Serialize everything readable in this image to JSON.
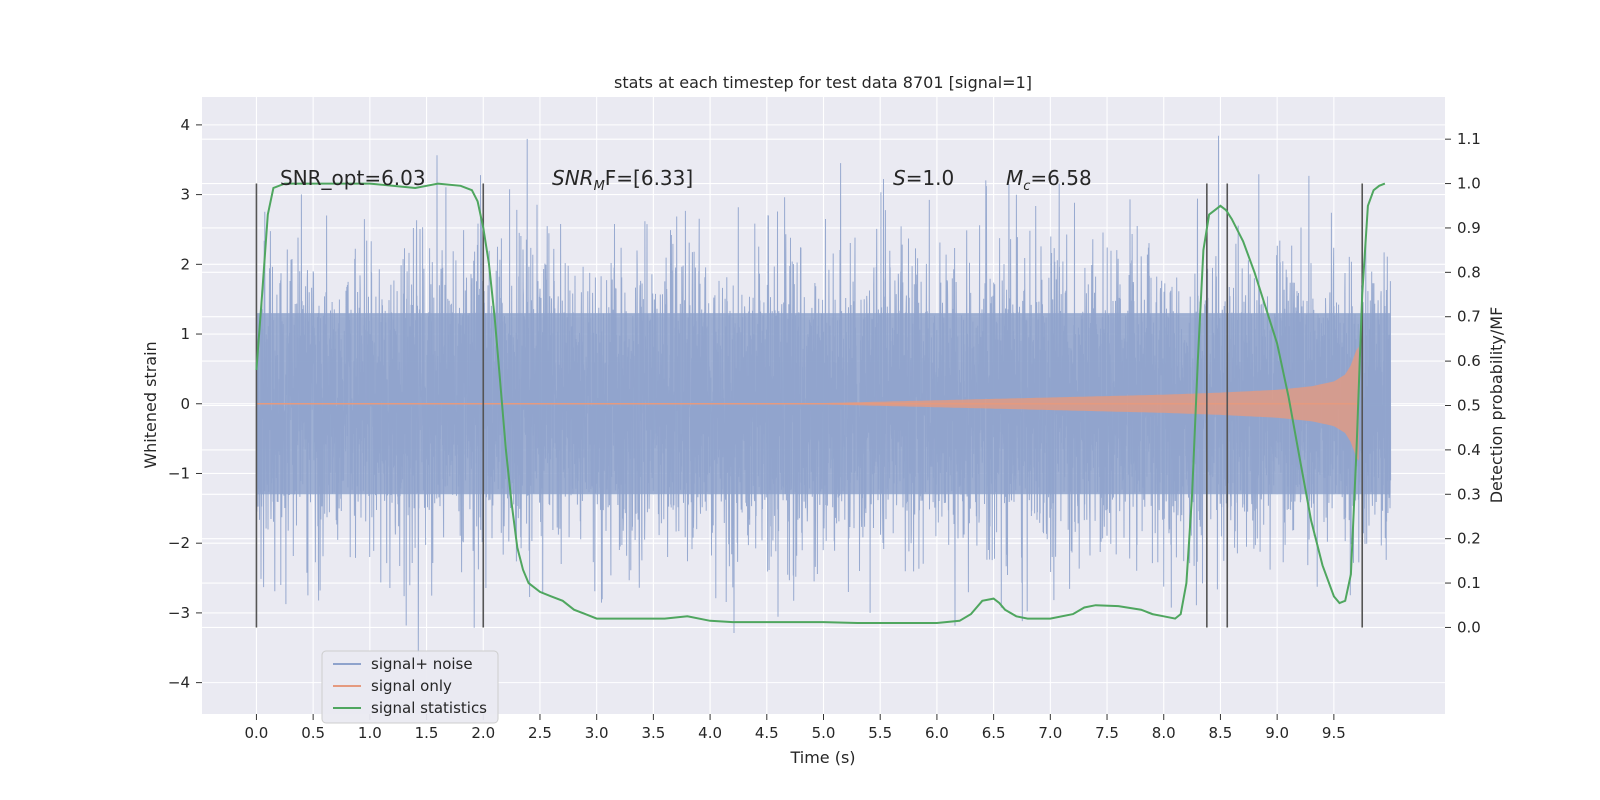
{
  "chart_data": {
    "type": "line",
    "title": "stats at each timestep for test data 8701 [signal=1]",
    "xlabel": "Time (s)",
    "ylabel_left": "Whitened strain",
    "ylabel_right": "Detection probability/MF",
    "xlim": [
      -0.48,
      10.48
    ],
    "ylim_left": [
      -4.45,
      4.4
    ],
    "ylim_right": [
      -0.195,
      1.195
    ],
    "x_ticks": [
      "0.0",
      "0.5",
      "1.0",
      "1.5",
      "2.0",
      "2.5",
      "3.0",
      "3.5",
      "4.0",
      "4.5",
      "5.0",
      "5.5",
      "6.0",
      "6.5",
      "7.0",
      "7.5",
      "8.0",
      "8.5",
      "9.0",
      "9.5"
    ],
    "y_ticks_left": [
      "4",
      "3",
      "2",
      "1",
      "0",
      "−1",
      "−2",
      "−3",
      "−4"
    ],
    "y_ticks_right": [
      "1.1",
      "1.0",
      "0.9",
      "0.8",
      "0.7",
      "0.6",
      "0.5",
      "0.4",
      "0.3",
      "0.2",
      "0.1",
      "0.0"
    ],
    "grid": true,
    "legend_position": "lower-left",
    "annotations": {
      "snr_opt": "SNR_opt=6.03",
      "snr_mf_base": "SNR",
      "snr_mf_sub": "M",
      "snr_mf_rest": "F=[6.33]",
      "s_italic": "S",
      "s_rest": "=1.0",
      "mc_italic": "M",
      "mc_sub": "c",
      "mc_rest": "=6.58"
    },
    "vertical_markers": [
      0.0,
      2.0,
      8.38,
      8.56,
      9.75
    ],
    "series": [
      {
        "name": "signal+ noise",
        "color": "#8fa3cc",
        "axis": "left",
        "t_range": [
          0.0,
          10.0
        ],
        "envelope_bulk": [
          -1.3,
          1.3
        ],
        "spike_range": [
          -4.05,
          4.05
        ]
      },
      {
        "name": "signal only",
        "color": "#e59a7f",
        "axis": "left",
        "envelope": {
          "t": [
            0.0,
            5.0,
            6.0,
            7.0,
            8.0,
            8.5,
            9.0,
            9.3,
            9.5,
            9.6,
            9.65,
            9.7,
            9.72
          ],
          "amp": [
            0.0,
            0.01,
            0.05,
            0.09,
            0.13,
            0.16,
            0.2,
            0.25,
            0.32,
            0.42,
            0.55,
            0.78,
            0.82
          ]
        }
      },
      {
        "name": "signal statistics",
        "color": "#4fa65f",
        "axis": "right",
        "x": [
          0.0,
          0.05,
          0.1,
          0.15,
          0.25,
          0.4,
          0.6,
          0.8,
          1.0,
          1.2,
          1.4,
          1.5,
          1.6,
          1.8,
          1.9,
          1.95,
          2.0,
          2.05,
          2.1,
          2.15,
          2.2,
          2.25,
          2.3,
          2.35,
          2.4,
          2.5,
          2.6,
          2.7,
          2.8,
          2.9,
          3.0,
          3.2,
          3.4,
          3.6,
          3.8,
          4.0,
          4.2,
          4.5,
          5.0,
          5.3,
          5.5,
          6.0,
          6.2,
          6.3,
          6.4,
          6.5,
          6.55,
          6.6,
          6.7,
          6.8,
          7.0,
          7.2,
          7.3,
          7.4,
          7.6,
          7.8,
          7.9,
          8.0,
          8.1,
          8.15,
          8.2,
          8.25,
          8.3,
          8.35,
          8.4,
          8.45,
          8.5,
          8.55,
          8.6,
          8.7,
          8.8,
          8.9,
          9.0,
          9.1,
          9.2,
          9.3,
          9.4,
          9.5,
          9.55,
          9.6,
          9.65,
          9.7,
          9.75,
          9.8,
          9.85,
          9.9,
          9.95
        ],
        "y": [
          0.58,
          0.75,
          0.93,
          0.99,
          1.0,
          1.0,
          1.0,
          1.0,
          1.0,
          0.995,
          0.99,
          0.995,
          1.0,
          0.995,
          0.985,
          0.96,
          0.9,
          0.82,
          0.7,
          0.55,
          0.4,
          0.28,
          0.18,
          0.13,
          0.1,
          0.08,
          0.07,
          0.06,
          0.04,
          0.03,
          0.02,
          0.02,
          0.02,
          0.02,
          0.025,
          0.015,
          0.012,
          0.012,
          0.012,
          0.01,
          0.01,
          0.01,
          0.015,
          0.03,
          0.06,
          0.065,
          0.055,
          0.04,
          0.025,
          0.02,
          0.02,
          0.03,
          0.045,
          0.05,
          0.048,
          0.04,
          0.03,
          0.025,
          0.02,
          0.03,
          0.1,
          0.3,
          0.6,
          0.85,
          0.93,
          0.94,
          0.95,
          0.94,
          0.92,
          0.87,
          0.8,
          0.72,
          0.64,
          0.52,
          0.38,
          0.24,
          0.14,
          0.07,
          0.055,
          0.06,
          0.12,
          0.4,
          0.75,
          0.95,
          0.985,
          0.995,
          1.0
        ]
      }
    ]
  }
}
